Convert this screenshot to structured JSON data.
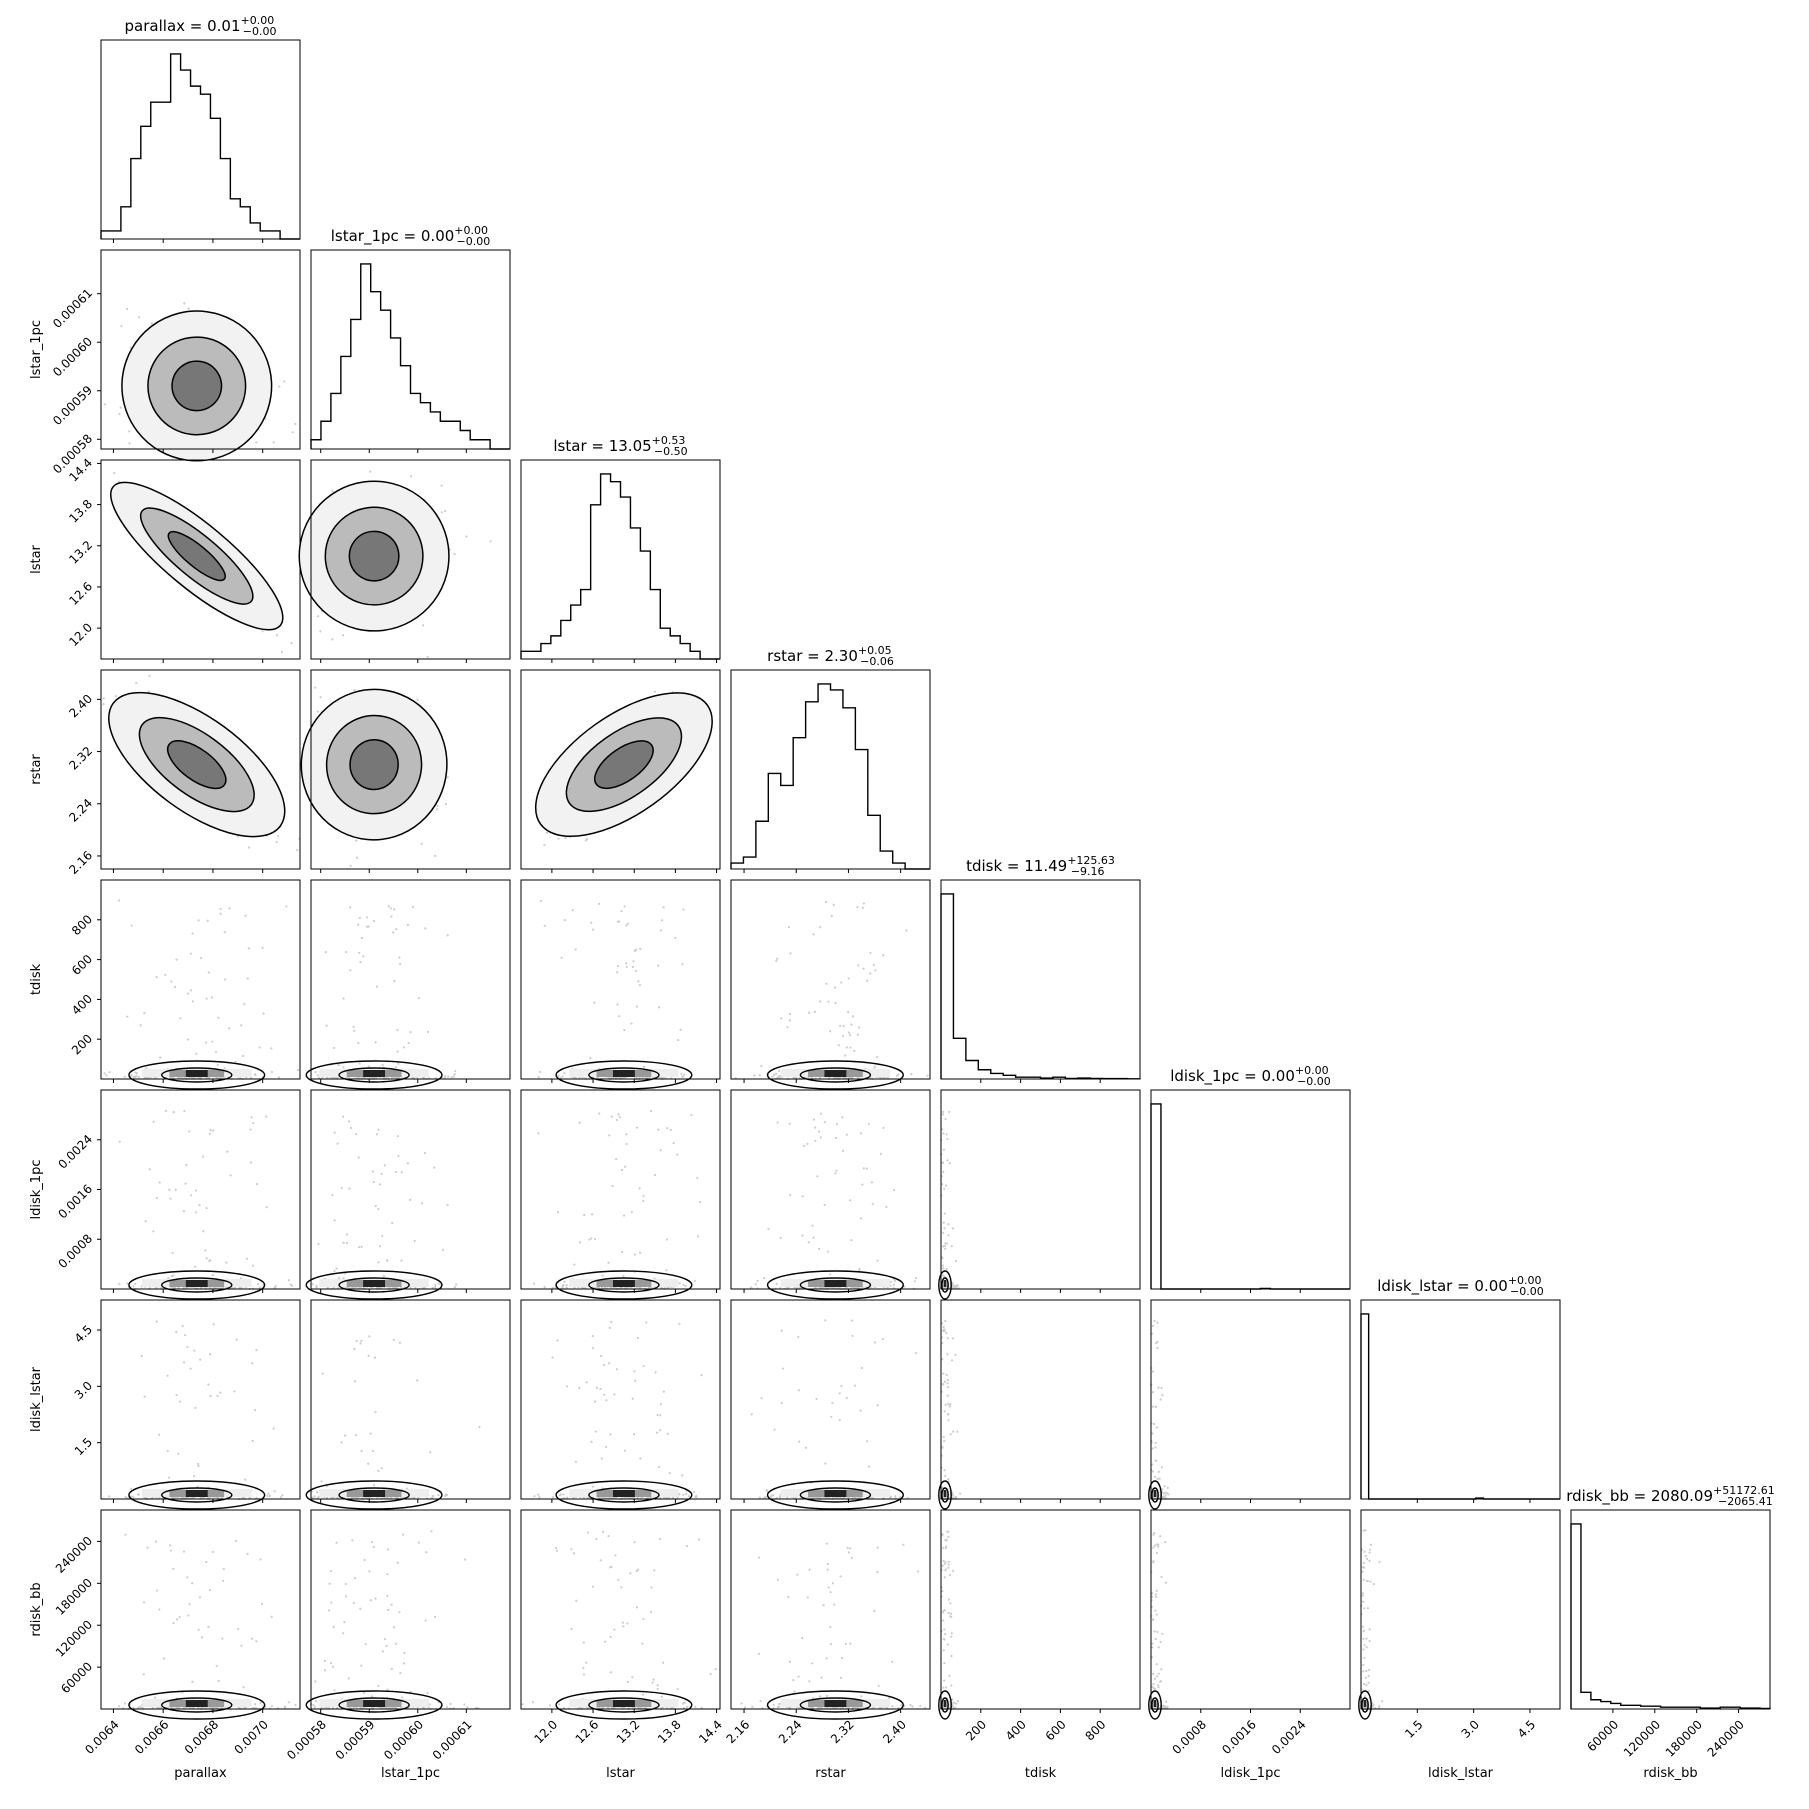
{
  "chart_data": {
    "type": "corner",
    "parameters": [
      "parallax",
      "lstar_1pc",
      "lstar",
      "rstar",
      "tdisk",
      "ldisk_1pc",
      "ldisk_lstar",
      "rdisk_bb"
    ],
    "titles": [
      {
        "text": "parallax = 0.01",
        "sup": "+0.00",
        "sub": "−0.00"
      },
      {
        "text": "lstar_1pc = 0.00",
        "sup": "+0.00",
        "sub": "−0.00"
      },
      {
        "text": "lstar = 13.05",
        "sup": "+0.53",
        "sub": "−0.50"
      },
      {
        "text": "rstar = 2.30",
        "sup": "+0.05",
        "sub": "−0.06"
      },
      {
        "text": "tdisk = 11.49",
        "sup": "+125.63",
        "sub": "−9.16"
      },
      {
        "text": "ldisk_1pc = 0.00",
        "sup": "+0.00",
        "sub": "−0.00"
      },
      {
        "text": "ldisk_lstar = 0.00",
        "sup": "+0.00",
        "sub": "−0.00"
      },
      {
        "text": "rdisk_bb = 2080.09",
        "sup": "+51172.61",
        "sub": "−2065.41"
      }
    ],
    "ranges": [
      [
        0.00635,
        0.00715
      ],
      [
        0.000578,
        0.000619
      ],
      [
        11.55,
        14.45
      ],
      [
        2.14,
        2.445
      ],
      [
        0,
        1000
      ],
      [
        0,
        0.0032
      ],
      [
        0,
        5.3
      ],
      [
        0,
        285000
      ]
    ],
    "ticks": [
      {
        "values": [
          0.0064,
          0.0066,
          0.0068,
          0.007
        ],
        "labels": [
          "0.0064",
          "0.0066",
          "0.0068",
          "0.0070"
        ]
      },
      {
        "values": [
          0.00058,
          0.00059,
          0.0006,
          0.00061
        ],
        "labels": [
          "0.00058",
          "0.00059",
          "0.00060",
          "0.00061"
        ]
      },
      {
        "values": [
          12.0,
          12.6,
          13.2,
          13.8,
          14.4
        ],
        "labels": [
          "12.0",
          "12.6",
          "13.2",
          "13.8",
          "14.4"
        ]
      },
      {
        "values": [
          2.16,
          2.24,
          2.32,
          2.4
        ],
        "labels": [
          "2.16",
          "2.24",
          "2.32",
          "2.40"
        ]
      },
      {
        "values": [
          200,
          400,
          600,
          800
        ],
        "labels": [
          "200",
          "400",
          "600",
          "800"
        ]
      },
      {
        "values": [
          0.0008,
          0.0016,
          0.0024
        ],
        "labels": [
          "0.0008",
          "0.0016",
          "0.0024"
        ]
      },
      {
        "values": [
          1.5,
          3.0,
          4.5
        ],
        "labels": [
          "1.5",
          "3.0",
          "4.5"
        ]
      },
      {
        "values": [
          60000,
          120000,
          180000,
          240000
        ],
        "labels": [
          "60000",
          "120000",
          "180000",
          "240000"
        ]
      }
    ],
    "histograms": [
      [
        1,
        1,
        4,
        10,
        14,
        17,
        17,
        23,
        21,
        19,
        18,
        15,
        10,
        5,
        4,
        2,
        1,
        1,
        0,
        0
      ],
      [
        1,
        3,
        6,
        10,
        14,
        20,
        17,
        15,
        12,
        9,
        6,
        5,
        4,
        3,
        3,
        2,
        1,
        1,
        0,
        0
      ],
      [
        1,
        1,
        2,
        3,
        5,
        7,
        9,
        20,
        24,
        23,
        21,
        17,
        14,
        9,
        4,
        3,
        2,
        1,
        0,
        0
      ],
      [
        1,
        2,
        8,
        16,
        14,
        22,
        28,
        31,
        30,
        27,
        20,
        9,
        3,
        1,
        0,
        0
      ],
      [
        100,
        22,
        10,
        5,
        3,
        2,
        1,
        1,
        0.5,
        1,
        0.3,
        0.5,
        0.3,
        0.2,
        0.2,
        0.1
      ],
      [
        100,
        0,
        0,
        0,
        0,
        0,
        0,
        0,
        0,
        0,
        0,
        0.3,
        0,
        0,
        0,
        0,
        0,
        0,
        0,
        0
      ],
      [
        100,
        0,
        0,
        0,
        0,
        0,
        0,
        0,
        0,
        0,
        0,
        0,
        0,
        0,
        0,
        0.5,
        0,
        0,
        0,
        0,
        0,
        0,
        0,
        0,
        0,
        0
      ],
      [
        100,
        9,
        5,
        4,
        3,
        2,
        2,
        1.5,
        1.5,
        1,
        1,
        1,
        1,
        0.5,
        0.5,
        1,
        1,
        0.5,
        0.5,
        0.3
      ]
    ],
    "mean": [
      0.006735,
      0.000591,
      13.05,
      2.3,
      11.49,
      2e-05,
      0.003,
      2080.09
    ],
    "std": [
      0.00014,
      7.5e-06,
      0.5,
      0.055,
      125,
      5e-05,
      0.05,
      51000
    ],
    "correlations": {
      "1-0": -0.15,
      "2-0": -0.97,
      "2-1": 0.15,
      "3-0": -0.85,
      "3-1": -0.1,
      "3-2": 0.82
    },
    "axis_labels": [
      "parallax",
      "lstar_1pc",
      "lstar",
      "rstar",
      "tdisk",
      "ldisk_1pc",
      "ldisk_lstar",
      "rdisk_bb"
    ]
  }
}
